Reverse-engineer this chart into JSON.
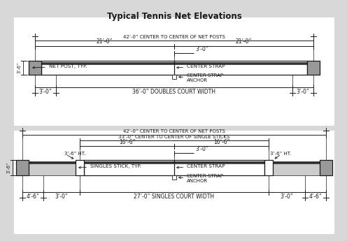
{
  "title": "Typical Tennis Net Elevations",
  "bg_color": "#e8e8e8",
  "diagram1": {
    "label_42ft": "42’-0” CENTER TO CENTER OF NET POSTS",
    "label_21ft_left": "21’-0”",
    "label_21ft_right": "21’-0”",
    "label_3ft": "3’-0”",
    "label_height": "3’-6”",
    "label_net_post": "NET POST, TYP.",
    "label_center_strap": "CENTER STRAP",
    "label_anchor": "CENTER STRAP\nANCHOR",
    "label_3ft_left": "3’-0”",
    "label_3ft_right": "3’-0”",
    "label_36ft": "36’-0” DOUBLES COURT WIDTH"
  },
  "diagram2": {
    "label_42ft": "42’-0” CENTER TO CENTER OF NET POSTS",
    "label_33ft": "33’-0” CENTER TO CENTER OF SINGLE STICKS",
    "label_16ft_left": "16’-6”",
    "label_16ft_right": "16’-6”",
    "label_36ht_left": "3’-6” HT.",
    "label_36ht_right": "3’-6” HT.",
    "label_3ft": "3’-0”",
    "label_height": "3’-6”",
    "label_singles_stick": "SINGLES STICK, TYP.",
    "label_center_strap": "CENTER STRAP",
    "label_anchor": "CENTER STRAP\nANCHOR",
    "label_4ft6_left": "4’-6”",
    "label_3ft_left": "3’-0”",
    "label_3ft_right": "3’-0”",
    "label_4ft6_right": "4’-6”",
    "label_27ft": "27’-0” SINGLES COURT WIDTH"
  }
}
